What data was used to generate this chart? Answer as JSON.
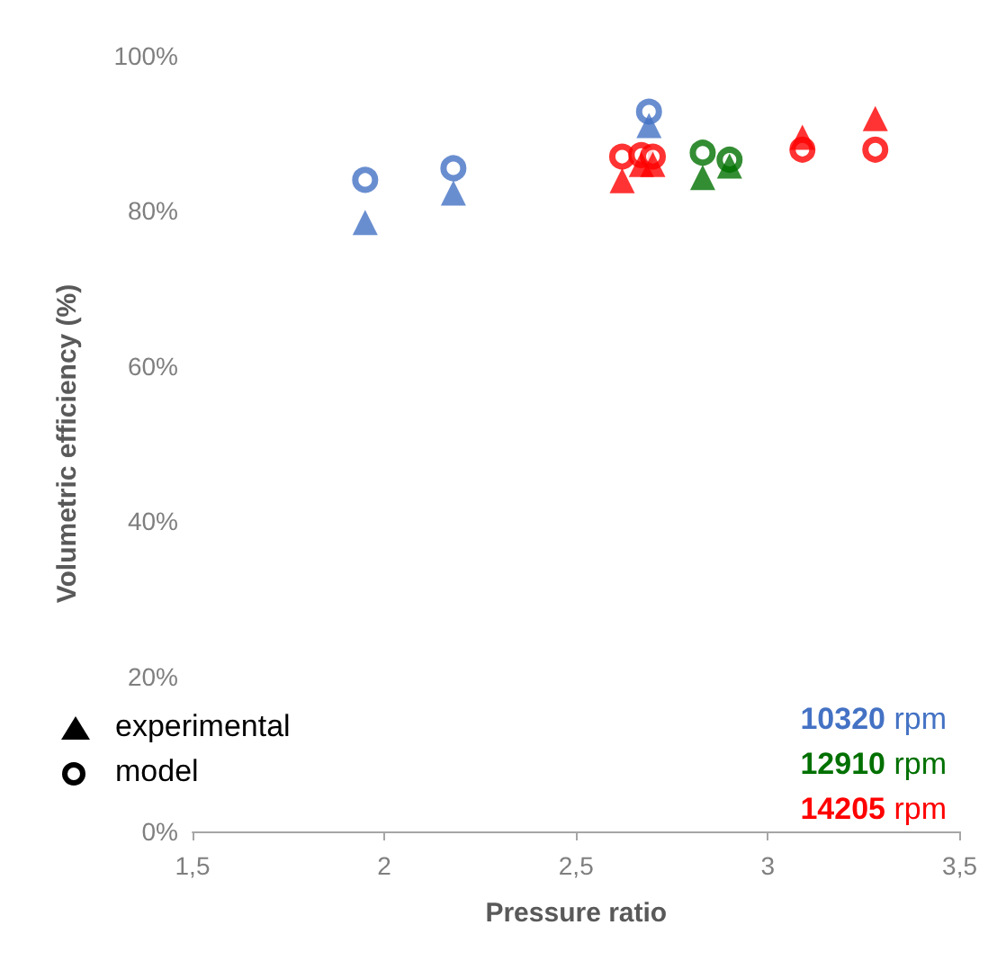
{
  "chart_data": {
    "type": "scatter",
    "xlabel": "Pressure ratio",
    "ylabel": "Volumetric efficiency (%)",
    "xlim": [
      1.5,
      3.5
    ],
    "xticks": [
      {
        "value": 1.5,
        "label": "1,5"
      },
      2,
      {
        "value": 2.5,
        "label": "2,5"
      },
      3,
      {
        "value": 3.5,
        "label": "3,5"
      }
    ],
    "ylim": [
      0,
      100
    ],
    "yticks": [
      {
        "value": 0,
        "label": "0%"
      },
      {
        "value": 20,
        "label": "20%"
      },
      {
        "value": 40,
        "label": "40%"
      },
      {
        "value": 60,
        "label": "60%"
      },
      {
        "value": 80,
        "label": "80%"
      },
      {
        "value": 100,
        "label": "100%"
      }
    ],
    "grid": false,
    "legend": "bottom right",
    "annotations": [
      "experimental",
      "model"
    ],
    "series": [
      {
        "name": "10320 rpm",
        "color": "#4472c4",
        "marker": "triangle",
        "x": [
          1.95,
          2.18,
          2.69
        ],
        "values": [
          78.5,
          82.3,
          91
        ]
      },
      {
        "color": "#4472c4",
        "marker": "circle",
        "x": [
          1.95,
          2.18,
          2.69
        ],
        "values": [
          84,
          85.5,
          92.8
        ]
      },
      {
        "name": "12910 rpm",
        "color": "#007000",
        "marker": "triangle",
        "x": [
          2.83,
          2.9
        ],
        "values": [
          84.3,
          85.8
        ]
      },
      {
        "color": "#007000",
        "marker": "circle",
        "x": [
          2.83,
          2.9
        ],
        "values": [
          87.5,
          86.6
        ]
      },
      {
        "name": "14205 rpm",
        "color": "#ff0000",
        "marker": "triangle",
        "x": [
          2.62,
          2.67,
          2.7,
          3.09,
          3.28
        ],
        "values": [
          83.9,
          86,
          86,
          89.5,
          91.9
        ]
      },
      {
        "color": "#ff0000",
        "marker": "circle",
        "x": [
          2.62,
          2.67,
          2.7,
          3.09,
          3.28
        ],
        "values": [
          87,
          87.2,
          87,
          87.9,
          87.9
        ]
      }
    ]
  }
}
